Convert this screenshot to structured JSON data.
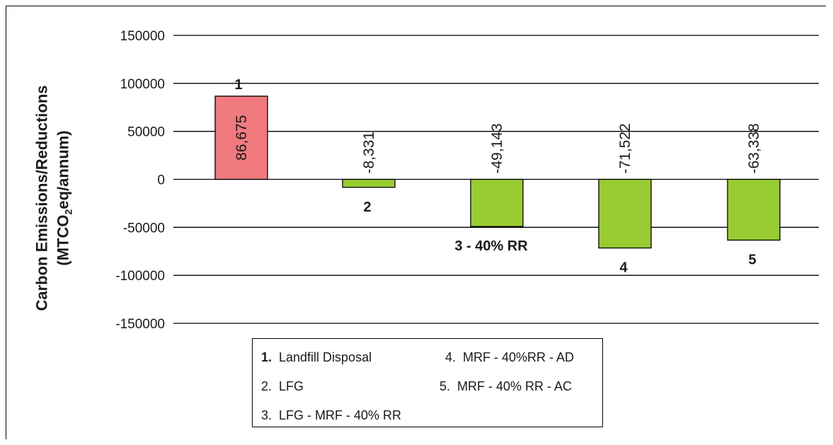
{
  "chart_data": {
    "type": "bar",
    "title": "",
    "xlabel": "",
    "ylabel_parts": [
      "Carbon Emissions/Reductions",
      "(MTCO",
      "2",
      "eq/annum)"
    ],
    "ylim": [
      -150000,
      150000
    ],
    "yticks": [
      150000,
      100000,
      50000,
      0,
      -50000,
      -100000,
      -150000
    ],
    "ytick_labels": [
      "150000",
      "100000",
      "50000",
      "0",
      "-50000",
      "-100000",
      "-150000"
    ],
    "grid": true,
    "categories": [
      "1",
      "2",
      "3 - 40% RR",
      "4",
      "5"
    ],
    "values": [
      86675,
      -8331,
      -49143,
      -71522,
      -63338
    ],
    "data_labels": [
      "86,675",
      "-8,331",
      "-49,143",
      "-71,522",
      "-63,338"
    ],
    "colors": {
      "positive": "#f07a7e",
      "negative": "#99cc33",
      "outline": "#000000",
      "grid": "#000000"
    },
    "legend": {
      "placement": "bottom",
      "entries": [
        {
          "num": "1.",
          "text": "Landfill Disposal"
        },
        {
          "num": "2.",
          "text": "LFG"
        },
        {
          "num": "3.",
          "text": "LFG - MRF - 40% RR"
        },
        {
          "num": "4.",
          "text": "MRF - 40%RR - AD"
        },
        {
          "num": "5.",
          "text": "MRF - 40% RR - AC"
        }
      ]
    }
  }
}
